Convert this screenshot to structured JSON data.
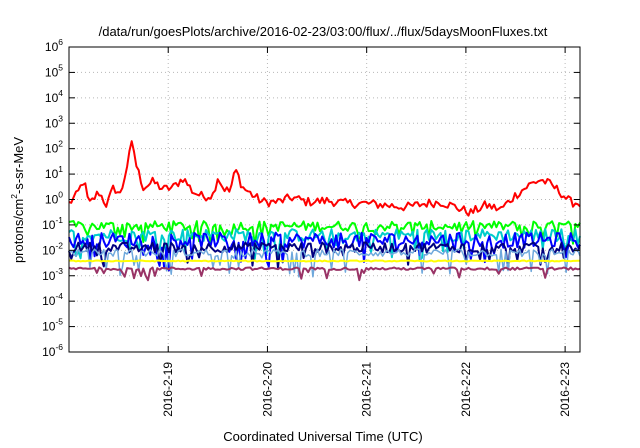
{
  "chart_data": {
    "type": "line",
    "title": "/data/run/goesPlots/archive/2016-02-23/03:00/flux/../flux/5daysMoonFluxes.txt",
    "xlabel": "Coordinated Universal Time (UTC)",
    "ylabel": "protons/cm²-s-sr-MeV",
    "ylabel_parts": {
      "pre": "protons/cm",
      "sup": "2",
      "post": "-s-sr-MeV"
    },
    "y_scale": "log",
    "ylim_exp": [
      -6,
      6
    ],
    "y_ticks": [
      {
        "exp": -6,
        "base": "10",
        "sup": "-6"
      },
      {
        "exp": -5,
        "base": "10",
        "sup": "-5"
      },
      {
        "exp": -4,
        "base": "10",
        "sup": "-4"
      },
      {
        "exp": -3,
        "base": "10",
        "sup": "-3"
      },
      {
        "exp": -2,
        "base": "10",
        "sup": "-2"
      },
      {
        "exp": -1,
        "base": "10",
        "sup": "-1"
      },
      {
        "exp": 0,
        "base": "10",
        "sup": "0"
      },
      {
        "exp": 1,
        "base": "10",
        "sup": "1"
      },
      {
        "exp": 2,
        "base": "10",
        "sup": "2"
      },
      {
        "exp": 3,
        "base": "10",
        "sup": "3"
      },
      {
        "exp": 4,
        "base": "10",
        "sup": "4"
      },
      {
        "exp": 5,
        "base": "10",
        "sup": "5"
      },
      {
        "exp": 6,
        "base": "10",
        "sup": "6"
      }
    ],
    "xlim_days": [
      -1.0,
      4.15
    ],
    "x_ticks": [
      {
        "day": 0,
        "label": "2016-2-19"
      },
      {
        "day": 1,
        "label": "2016-2-20"
      },
      {
        "day": 2,
        "label": "2016-2-21"
      },
      {
        "day": 3,
        "label": "2016-2-22"
      },
      {
        "day": 4,
        "label": "2016-2-23"
      }
    ],
    "grid": true,
    "series": [
      {
        "color": "#ff0000",
        "width": 2,
        "profile": [
          [
            -1.0,
            0.7
          ],
          [
            -0.92,
            1.5
          ],
          [
            -0.85,
            6
          ],
          [
            -0.8,
            0.6
          ],
          [
            -0.7,
            2
          ],
          [
            -0.62,
            0.6
          ],
          [
            -0.55,
            3
          ],
          [
            -0.48,
            1.5
          ],
          [
            -0.4,
            40
          ],
          [
            -0.36,
            200
          ],
          [
            -0.32,
            20
          ],
          [
            -0.25,
            3
          ],
          [
            -0.15,
            5
          ],
          [
            -0.05,
            2.5
          ],
          [
            0.05,
            3
          ],
          [
            0.15,
            7
          ],
          [
            0.25,
            2
          ],
          [
            0.35,
            1.3
          ],
          [
            0.45,
            1.5
          ],
          [
            0.5,
            8
          ],
          [
            0.55,
            3
          ],
          [
            0.62,
            2
          ],
          [
            0.68,
            15
          ],
          [
            0.75,
            3
          ],
          [
            0.85,
            1.5
          ],
          [
            0.95,
            0.8
          ],
          [
            1.1,
            0.8
          ],
          [
            1.25,
            1.2
          ],
          [
            1.4,
            0.8
          ],
          [
            1.6,
            0.9
          ],
          [
            1.8,
            0.7
          ],
          [
            2.0,
            0.7
          ],
          [
            2.2,
            0.6
          ],
          [
            2.4,
            0.5
          ],
          [
            2.6,
            0.7
          ],
          [
            2.75,
            0.8
          ],
          [
            2.9,
            0.5
          ],
          [
            3.05,
            0.3
          ],
          [
            3.2,
            0.6
          ],
          [
            3.35,
            0.4
          ],
          [
            3.5,
            1.5
          ],
          [
            3.65,
            4
          ],
          [
            3.75,
            6
          ],
          [
            3.85,
            4
          ],
          [
            3.95,
            2
          ],
          [
            4.05,
            0.8
          ],
          [
            4.15,
            0.7
          ]
        ],
        "noise": 0.18
      },
      {
        "color": "#00ff00",
        "width": 2,
        "profile": [
          [
            -1.0,
            0.09
          ],
          [
            4.15,
            0.09
          ]
        ],
        "noise": 0.2,
        "dips": 0.2
      },
      {
        "color": "#00cccc",
        "width": 2,
        "profile": [
          [
            -1.0,
            0.04
          ],
          [
            4.15,
            0.04
          ]
        ],
        "noise": 0.25,
        "dips": 0.3
      },
      {
        "color": "#0000ff",
        "width": 2,
        "profile": [
          [
            -1.0,
            0.025
          ],
          [
            4.15,
            0.025
          ]
        ],
        "noise": 0.3,
        "dips": 0.35
      },
      {
        "color": "#00007f",
        "width": 2,
        "profile": [
          [
            -1.0,
            0.013
          ],
          [
            4.15,
            0.013
          ]
        ],
        "noise": 0.2,
        "dips": 0.25
      },
      {
        "color": "#6fa8dc",
        "width": 1.5,
        "profile": [
          [
            -1.0,
            0.008
          ],
          [
            4.15,
            0.008
          ]
        ],
        "noise": 0.15,
        "dips": 0.3
      },
      {
        "color": "#ffff00",
        "width": 2,
        "profile": [
          [
            -1.0,
            0.0038
          ],
          [
            4.15,
            0.0038
          ]
        ],
        "noise": 0.02,
        "dips": 0.0
      },
      {
        "color": "#993366",
        "width": 2,
        "profile": [
          [
            -1.0,
            0.0019
          ],
          [
            4.15,
            0.0019
          ]
        ],
        "noise": 0.05,
        "dips": 0.15
      }
    ]
  }
}
